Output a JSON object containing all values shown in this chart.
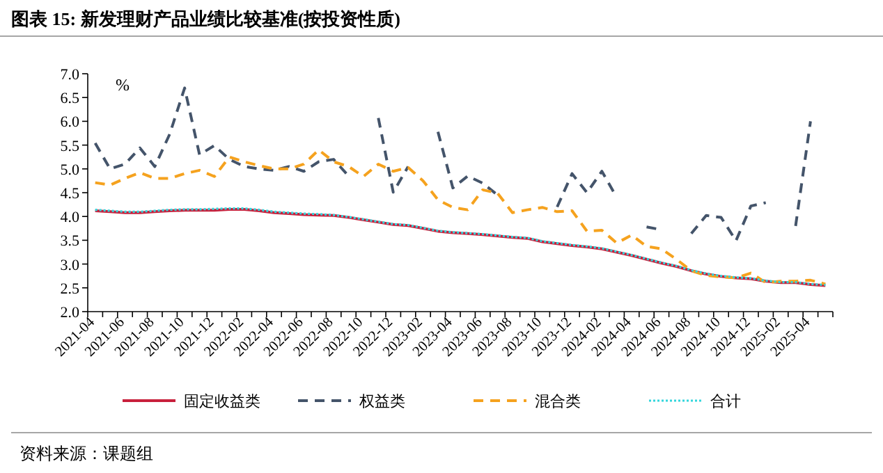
{
  "chart_data": {
    "type": "line",
    "title": "图表 15: 新发理财产品业绩比较基准(按投资性质)",
    "ylabel": "%",
    "categories": [
      "2021-04",
      null,
      "2021-06",
      null,
      "2021-08",
      null,
      "2021-10",
      null,
      "2021-12",
      null,
      "2022-02",
      null,
      "2022-04",
      null,
      "2022-06",
      null,
      "2022-08",
      null,
      "2022-10",
      null,
      "2022-12",
      null,
      "2023-02",
      null,
      "2023-04",
      null,
      "2023-06",
      null,
      "2023-08",
      null,
      "2023-10",
      null,
      "2023-12",
      null,
      "2024-02",
      null,
      "2024-04",
      null,
      "2024-06",
      null,
      "2024-08",
      null,
      "2024-10",
      null,
      "2024-12",
      null,
      "2025-02",
      null,
      "2025-04",
      null
    ],
    "series": [
      {
        "name": "固定收益类",
        "color": "#c8203c",
        "line_style": "solid",
        "values": [
          4.12,
          4.1,
          4.08,
          4.08,
          4.1,
          4.12,
          4.13,
          4.13,
          4.13,
          4.15,
          4.15,
          4.12,
          4.08,
          4.06,
          4.04,
          4.03,
          4.02,
          3.98,
          3.93,
          3.88,
          3.83,
          3.81,
          3.75,
          3.69,
          3.66,
          3.64,
          3.62,
          3.59,
          3.56,
          3.54,
          3.47,
          3.43,
          3.39,
          3.36,
          3.32,
          3.25,
          3.18,
          3.1,
          3.02,
          2.95,
          2.86,
          2.79,
          2.74,
          2.71,
          2.69,
          2.64,
          2.61,
          2.61,
          2.57,
          2.55
        ]
      },
      {
        "name": "权益类",
        "color": "#44546a",
        "line_style": "dashed",
        "values": [
          5.54,
          5.0,
          5.1,
          5.44,
          5.05,
          5.73,
          6.7,
          5.3,
          5.49,
          5.2,
          5.05,
          5.0,
          4.97,
          5.05,
          4.95,
          5.15,
          5.2,
          4.85,
          null,
          6.07,
          4.51,
          5.05,
          null,
          5.78,
          4.6,
          4.85,
          4.7,
          4.45,
          null,
          null,
          null,
          4.2,
          4.9,
          4.5,
          4.95,
          4.4,
          null,
          3.78,
          3.72,
          null,
          3.64,
          4.02,
          3.98,
          3.49,
          4.22,
          4.29,
          null,
          3.8,
          6.0,
          null
        ]
      },
      {
        "name": "混合类",
        "color": "#f5a21e",
        "line_style": "dashed",
        "values": [
          4.71,
          4.66,
          4.8,
          4.92,
          4.8,
          4.8,
          4.9,
          4.97,
          4.84,
          5.25,
          5.15,
          5.07,
          5.0,
          5.0,
          5.1,
          5.4,
          5.15,
          5.05,
          4.84,
          5.1,
          4.95,
          5.03,
          4.75,
          4.35,
          4.19,
          4.14,
          4.56,
          4.49,
          4.08,
          4.14,
          4.19,
          4.1,
          4.12,
          3.69,
          3.71,
          3.44,
          3.61,
          3.37,
          3.32,
          3.1,
          2.86,
          2.76,
          2.73,
          2.71,
          2.81,
          2.61,
          2.64,
          2.64,
          2.66,
          2.58
        ]
      },
      {
        "name": "合计",
        "color": "#33d6dc",
        "line_style": "dotted",
        "values": [
          4.14,
          4.12,
          4.1,
          4.1,
          4.12,
          4.14,
          4.15,
          4.15,
          4.16,
          4.17,
          4.17,
          4.14,
          4.1,
          4.08,
          4.06,
          4.05,
          4.03,
          3.99,
          3.94,
          3.89,
          3.84,
          3.82,
          3.76,
          3.7,
          3.67,
          3.65,
          3.63,
          3.6,
          3.57,
          3.55,
          3.48,
          3.44,
          3.4,
          3.37,
          3.33,
          3.26,
          3.19,
          3.11,
          3.03,
          2.96,
          2.87,
          2.8,
          2.75,
          2.72,
          2.7,
          2.65,
          2.62,
          2.62,
          2.58,
          2.56
        ]
      }
    ],
    "ylim": [
      2.0,
      7.0
    ],
    "yticks": [
      {
        "value": 2.0,
        "label": "2.0"
      },
      {
        "value": 2.5,
        "label": "2.5"
      },
      {
        "value": 3.0,
        "label": "3.0"
      },
      {
        "value": 3.5,
        "label": "3.5"
      },
      {
        "value": 4.0,
        "label": "4.0"
      },
      {
        "value": 4.5,
        "label": "4.5"
      },
      {
        "value": 5.0,
        "label": "5.0"
      },
      {
        "value": 5.5,
        "label": "5.5"
      },
      {
        "value": 6.0,
        "label": "6.0"
      },
      {
        "value": 6.5,
        "label": "6.5"
      },
      {
        "value": 7.0,
        "label": "7.0"
      }
    ],
    "grid": false,
    "legend": "bottom",
    "annotations": [
      "资料来源：课题组"
    ]
  }
}
